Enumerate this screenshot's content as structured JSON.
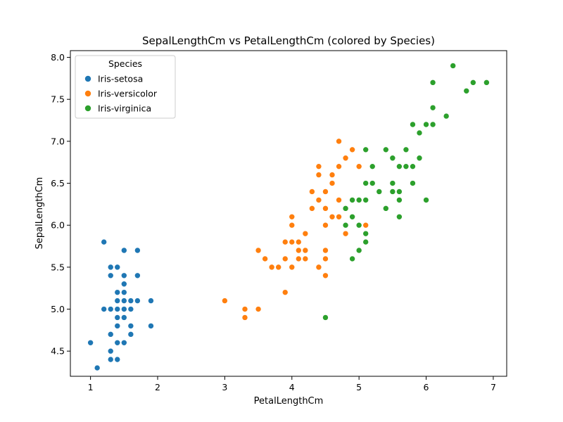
{
  "chart_data": {
    "type": "scatter",
    "title": "SepalLengthCm vs PetalLengthCm (colored by Species)",
    "xlabel": "PetalLengthCm",
    "ylabel": "SepalLengthCm",
    "xlim": [
      0.7,
      7.2
    ],
    "ylim": [
      4.2,
      8.08
    ],
    "xticks": [
      1,
      2,
      3,
      4,
      5,
      6,
      7
    ],
    "yticks": [
      4.5,
      5.0,
      5.5,
      6.0,
      6.5,
      7.0,
      7.5,
      8.0
    ],
    "xtick_labels": [
      "1",
      "2",
      "3",
      "4",
      "5",
      "6",
      "7"
    ],
    "ytick_labels": [
      "4.5",
      "5.0",
      "5.5",
      "6.0",
      "6.5",
      "7.0",
      "7.5",
      "8.0"
    ],
    "grid": false,
    "legend": {
      "title": "Species",
      "placement": "top-left"
    },
    "series": [
      {
        "name": "Iris-setosa",
        "color": "#1f77b4",
        "points": [
          [
            1.0,
            4.6
          ],
          [
            1.1,
            4.3
          ],
          [
            1.2,
            5.8
          ],
          [
            1.2,
            5.0
          ],
          [
            1.3,
            5.5
          ],
          [
            1.3,
            5.4
          ],
          [
            1.3,
            5.0
          ],
          [
            1.3,
            4.7
          ],
          [
            1.3,
            4.5
          ],
          [
            1.3,
            4.4
          ],
          [
            1.4,
            5.5
          ],
          [
            1.4,
            5.2
          ],
          [
            1.4,
            5.1
          ],
          [
            1.4,
            5.0
          ],
          [
            1.4,
            4.9
          ],
          [
            1.4,
            4.8
          ],
          [
            1.4,
            4.6
          ],
          [
            1.4,
            4.4
          ],
          [
            1.5,
            5.7
          ],
          [
            1.5,
            5.4
          ],
          [
            1.5,
            5.3
          ],
          [
            1.5,
            5.2
          ],
          [
            1.5,
            5.1
          ],
          [
            1.5,
            5.0
          ],
          [
            1.5,
            4.9
          ],
          [
            1.5,
            4.6
          ],
          [
            1.6,
            5.1
          ],
          [
            1.6,
            5.0
          ],
          [
            1.6,
            4.8
          ],
          [
            1.6,
            4.7
          ],
          [
            1.7,
            5.7
          ],
          [
            1.7,
            5.4
          ],
          [
            1.7,
            5.1
          ],
          [
            1.9,
            5.1
          ],
          [
            1.9,
            4.8
          ]
        ]
      },
      {
        "name": "Iris-versicolor",
        "color": "#ff7f0e",
        "points": [
          [
            3.0,
            5.1
          ],
          [
            3.3,
            5.0
          ],
          [
            3.3,
            4.9
          ],
          [
            3.5,
            5.7
          ],
          [
            3.5,
            5.0
          ],
          [
            3.6,
            5.6
          ],
          [
            3.7,
            5.5
          ],
          [
            3.8,
            5.5
          ],
          [
            3.9,
            5.8
          ],
          [
            3.9,
            5.6
          ],
          [
            3.9,
            5.2
          ],
          [
            4.0,
            6.1
          ],
          [
            4.0,
            6.0
          ],
          [
            4.0,
            5.8
          ],
          [
            4.0,
            5.5
          ],
          [
            4.1,
            5.8
          ],
          [
            4.1,
            5.7
          ],
          [
            4.1,
            5.6
          ],
          [
            4.2,
            5.9
          ],
          [
            4.2,
            5.7
          ],
          [
            4.2,
            5.6
          ],
          [
            4.3,
            6.4
          ],
          [
            4.3,
            6.2
          ],
          [
            4.4,
            6.7
          ],
          [
            4.4,
            6.6
          ],
          [
            4.4,
            6.3
          ],
          [
            4.4,
            5.5
          ],
          [
            4.5,
            6.4
          ],
          [
            4.5,
            6.2
          ],
          [
            4.5,
            6.0
          ],
          [
            4.5,
            5.7
          ],
          [
            4.5,
            5.6
          ],
          [
            4.5,
            5.4
          ],
          [
            4.6,
            6.6
          ],
          [
            4.6,
            6.5
          ],
          [
            4.6,
            6.1
          ],
          [
            4.7,
            7.0
          ],
          [
            4.7,
            6.7
          ],
          [
            4.7,
            6.3
          ],
          [
            4.7,
            6.1
          ],
          [
            4.8,
            6.8
          ],
          [
            4.8,
            5.9
          ],
          [
            4.9,
            6.9
          ],
          [
            5.0,
            6.7
          ],
          [
            5.1,
            6.0
          ]
        ]
      },
      {
        "name": "Iris-virginica",
        "color": "#2ca02c",
        "points": [
          [
            4.5,
            4.9
          ],
          [
            4.8,
            6.2
          ],
          [
            4.8,
            6.0
          ],
          [
            4.9,
            6.3
          ],
          [
            4.9,
            6.1
          ],
          [
            4.9,
            5.6
          ],
          [
            5.0,
            6.3
          ],
          [
            5.0,
            6.0
          ],
          [
            5.0,
            5.7
          ],
          [
            5.1,
            6.9
          ],
          [
            5.1,
            6.5
          ],
          [
            5.1,
            6.3
          ],
          [
            5.1,
            5.9
          ],
          [
            5.1,
            5.8
          ],
          [
            5.2,
            6.7
          ],
          [
            5.2,
            6.5
          ],
          [
            5.3,
            6.4
          ],
          [
            5.4,
            6.9
          ],
          [
            5.4,
            6.2
          ],
          [
            5.5,
            6.8
          ],
          [
            5.5,
            6.5
          ],
          [
            5.5,
            6.4
          ],
          [
            5.6,
            6.7
          ],
          [
            5.6,
            6.4
          ],
          [
            5.6,
            6.3
          ],
          [
            5.6,
            6.1
          ],
          [
            5.7,
            6.9
          ],
          [
            5.7,
            6.7
          ],
          [
            5.8,
            7.2
          ],
          [
            5.8,
            6.7
          ],
          [
            5.8,
            6.5
          ],
          [
            5.9,
            7.1
          ],
          [
            5.9,
            6.8
          ],
          [
            6.0,
            7.2
          ],
          [
            6.0,
            6.3
          ],
          [
            6.1,
            7.7
          ],
          [
            6.1,
            7.4
          ],
          [
            6.1,
            7.2
          ],
          [
            6.3,
            7.3
          ],
          [
            6.4,
            7.9
          ],
          [
            6.6,
            7.6
          ],
          [
            6.7,
            7.7
          ],
          [
            6.9,
            7.7
          ]
        ]
      }
    ]
  }
}
